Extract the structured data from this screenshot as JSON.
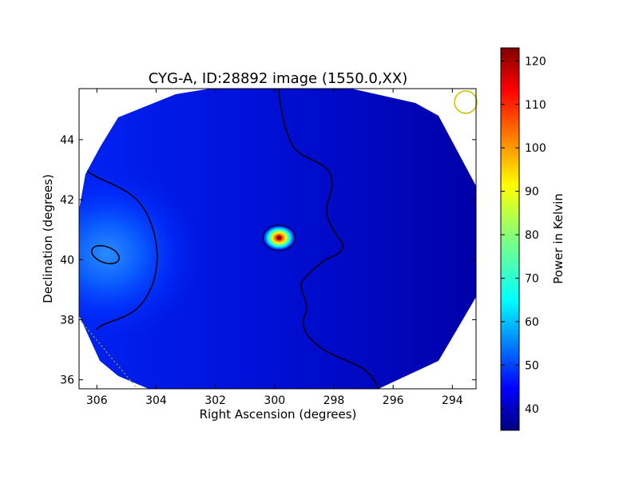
{
  "chart_data": {
    "type": "heatmap",
    "title": "CYG-A, ID:28892 image (1550.0,XX)",
    "xlabel": "Right Ascension (degrees)",
    "ylabel": "Declination (degrees)",
    "xlim": [
      306.6,
      293.2
    ],
    "ylim": [
      35.7,
      45.7
    ],
    "x_ticks": [
      306,
      304,
      302,
      300,
      298,
      296,
      294
    ],
    "y_ticks": [
      36,
      38,
      40,
      42,
      44
    ],
    "x_tick_labels": [
      "306",
      "304",
      "302",
      "300",
      "298",
      "296",
      "294"
    ],
    "y_tick_labels": [
      "36",
      "38",
      "40",
      "42",
      "44"
    ],
    "colormap": "jet",
    "background_level": 38,
    "colorbar": {
      "label": "Power in Kelvin",
      "range": [
        35,
        123
      ],
      "ticks": [
        40,
        50,
        60,
        70,
        80,
        90,
        100,
        110,
        120
      ],
      "tick_labels": [
        "40",
        "50",
        "60",
        "70",
        "80",
        "90",
        "100",
        "110",
        "120"
      ]
    },
    "sources": [
      {
        "ra": 299.85,
        "dec": 40.73,
        "peak": 123,
        "ra_width_deg": 0.55,
        "dec_width_deg": 0.42
      },
      {
        "ra": 305.6,
        "dec": 40.2,
        "peak": 49,
        "ra_width_deg": 1.6,
        "dec_width_deg": 1.4
      }
    ],
    "contours": {
      "level_lines_color": "#000000",
      "source_ring_count": 16
    },
    "beam_marker": {
      "ra": 293.55,
      "dec": 45.25,
      "color": "#c8c800"
    },
    "grid": false,
    "legend": "none"
  }
}
